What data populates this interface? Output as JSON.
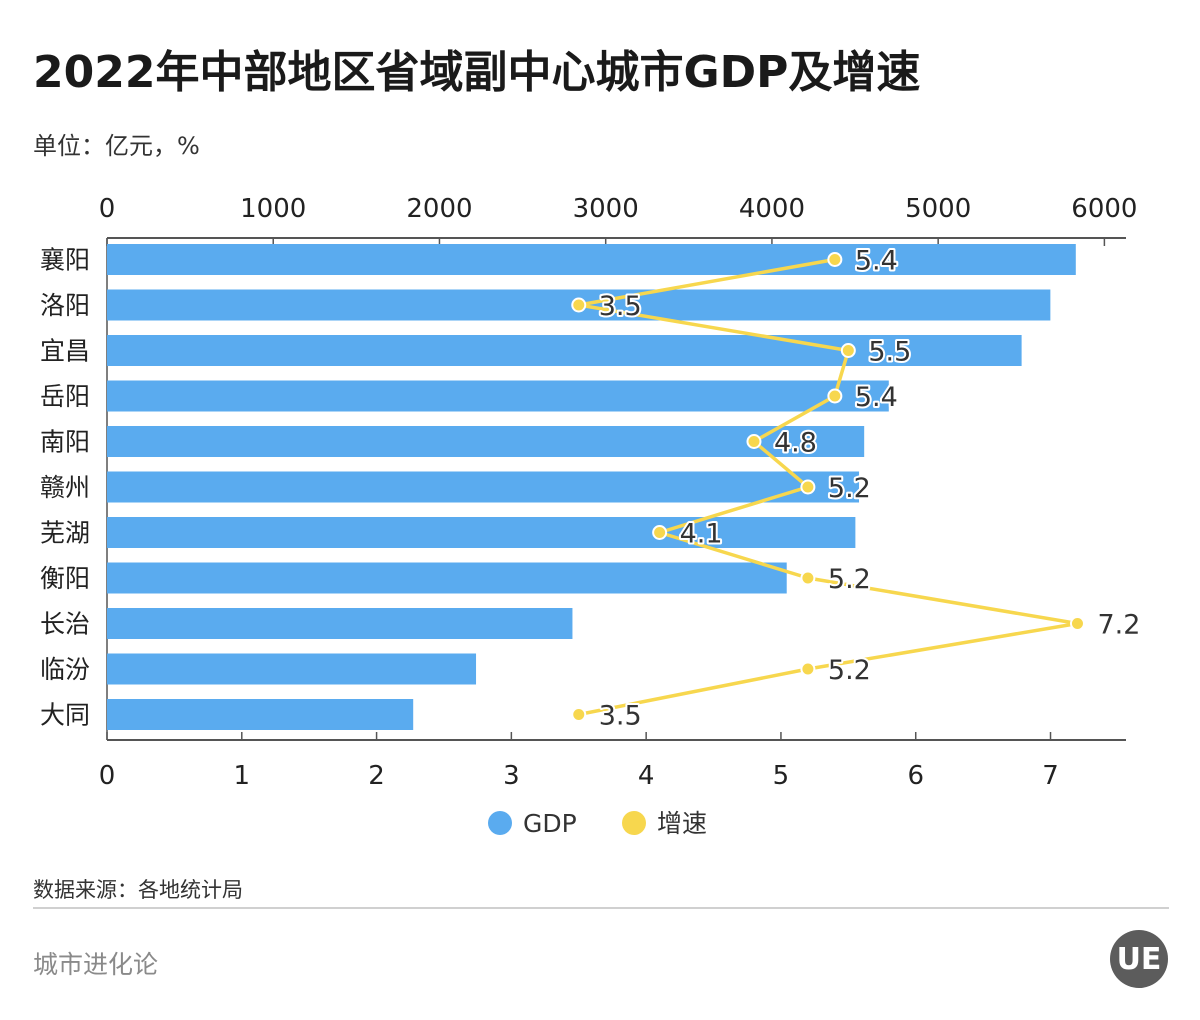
{
  "title": "2022年中部地区省域副中心城市GDP及增速",
  "unit": "单位：亿元，%",
  "source": "数据来源：各地统计局",
  "brand": "城市进化论",
  "logo_text": "UE",
  "colors": {
    "gdp": "#5aabef",
    "growth": "#f7d74e",
    "axis": "#555555",
    "text": "#222222"
  },
  "chart_data": {
    "type": "bar",
    "orientation": "horizontal",
    "categories": [
      "襄阳",
      "洛阳",
      "宜昌",
      "岳阳",
      "南阳",
      "赣州",
      "芜湖",
      "衡阳",
      "长治",
      "临汾",
      "大同"
    ],
    "series": [
      {
        "name": "GDP",
        "type": "bar",
        "axis": "top",
        "values": [
          5828,
          5675,
          5502,
          4703,
          4555,
          4524,
          4502,
          4089,
          2800,
          2220,
          1842
        ]
      },
      {
        "name": "增速",
        "type": "line",
        "axis": "bottom",
        "values": [
          5.4,
          3.5,
          5.5,
          5.4,
          4.8,
          5.2,
          4.1,
          5.2,
          7.2,
          5.2,
          3.5
        ],
        "labels": [
          "5.4",
          "3.5",
          "5.5",
          "5.4",
          "4.8",
          "5.2",
          "4.1",
          "5.2",
          "7.2",
          "5.2",
          "3.5"
        ]
      }
    ],
    "top_axis": {
      "ticks": [
        "0",
        "1000",
        "2000",
        "3000",
        "4000",
        "5000",
        "6000"
      ],
      "range": [
        0,
        6130
      ]
    },
    "bottom_axis": {
      "ticks": [
        "0",
        "1",
        "2",
        "3",
        "4",
        "5",
        "6",
        "7"
      ],
      "range": [
        0,
        7.56
      ]
    },
    "legend": [
      {
        "name": "GDP",
        "color": "#5aabef"
      },
      {
        "name": "增速",
        "color": "#f7d74e"
      }
    ],
    "legend_position": "bottom-center"
  }
}
